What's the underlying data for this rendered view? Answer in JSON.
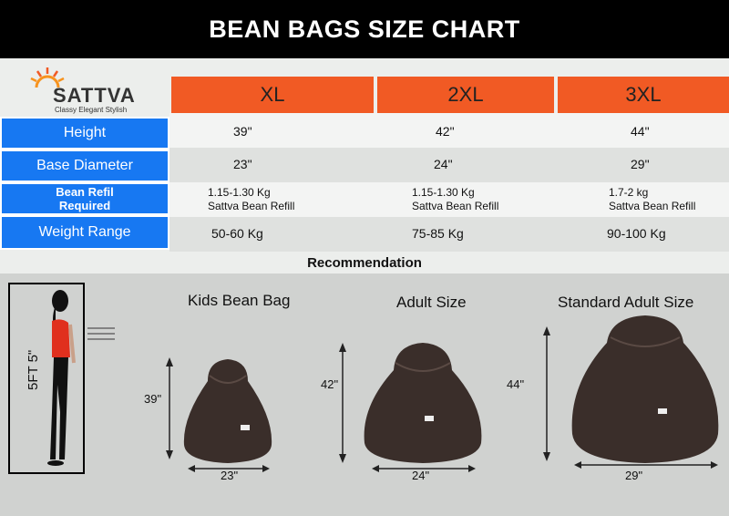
{
  "header": {
    "title": "BEAN BAGS SIZE CHART"
  },
  "logo": {
    "brand": "SATTVA",
    "tagline": "Classy Elegant Stylish"
  },
  "sizes": [
    "XL",
    "2XL",
    "3XL"
  ],
  "rows": [
    {
      "label": "Height",
      "values": [
        "39\"",
        "42\"",
        "44\""
      ]
    },
    {
      "label": "Base Diameter",
      "values": [
        "23\"",
        "24\"",
        "29\""
      ]
    },
    {
      "label_line1": "Bean Refil",
      "label_line2": "Required",
      "values": [
        {
          "line1": "1.15-1.30 Kg",
          "line2": "Sattva Bean Refill"
        },
        {
          "line1": "1.15-1.30 Kg",
          "line2": "Sattva Bean Refill"
        },
        {
          "line1": "1.7-2 kg",
          "line2": "Sattva Bean Refill"
        }
      ]
    },
    {
      "label": "Weight Range",
      "values": [
        "50-60 Kg",
        "75-85 Kg",
        "90-100 Kg"
      ]
    }
  ],
  "recommendation": {
    "title": "Recommendation",
    "person_height": "5FT 5\"",
    "bags": [
      {
        "title": "Kids Bean Bag",
        "height": "39\"",
        "diameter": "23\""
      },
      {
        "title": "Adult Size",
        "height": "42\"",
        "diameter": "24\""
      },
      {
        "title": "Standard Adult Size",
        "height": "44\"",
        "diameter": "29\""
      }
    ]
  },
  "colors": {
    "header_bg": "#000000",
    "size_header": "#f15a24",
    "row_label": "#1778f2",
    "bag": "#3a2e2a"
  }
}
